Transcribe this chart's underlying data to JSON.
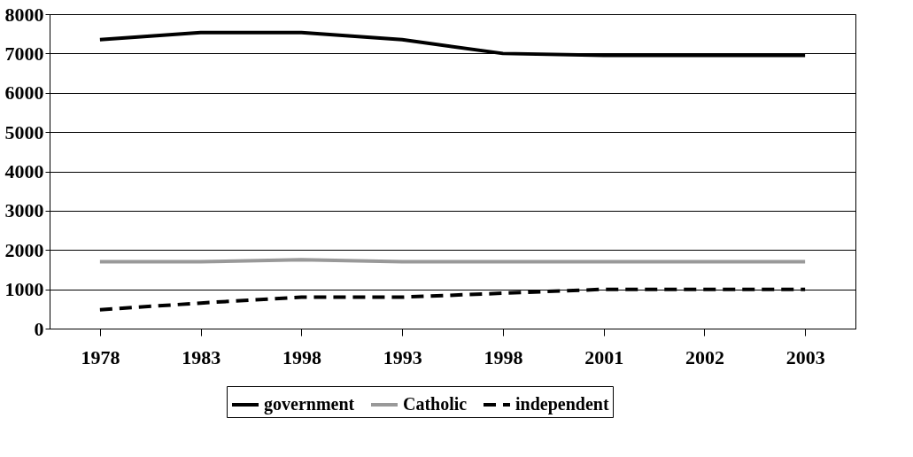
{
  "chart_data": {
    "type": "line",
    "categories": [
      "1978",
      "1983",
      "1998",
      "1993",
      "1998",
      "2001",
      "2002",
      "2003"
    ],
    "series": [
      {
        "name": "government",
        "color": "#000000",
        "line_style": "solid",
        "values": [
          7350,
          7530,
          7530,
          7350,
          7000,
          6950,
          6950,
          6950
        ]
      },
      {
        "name": "Catholic",
        "color": "#999999",
        "line_style": "solid",
        "values": [
          1700,
          1700,
          1750,
          1700,
          1700,
          1700,
          1700,
          1700
        ]
      },
      {
        "name": "independent",
        "color": "#000000",
        "line_style": "dashed",
        "values": [
          480,
          650,
          800,
          800,
          900,
          1000,
          1000,
          1000
        ]
      }
    ],
    "ylim": [
      0,
      8000
    ],
    "yticks": [
      0,
      1000,
      2000,
      3000,
      4000,
      5000,
      6000,
      7000,
      8000
    ],
    "grid": "y",
    "legend": "bottom",
    "marker": "none"
  }
}
